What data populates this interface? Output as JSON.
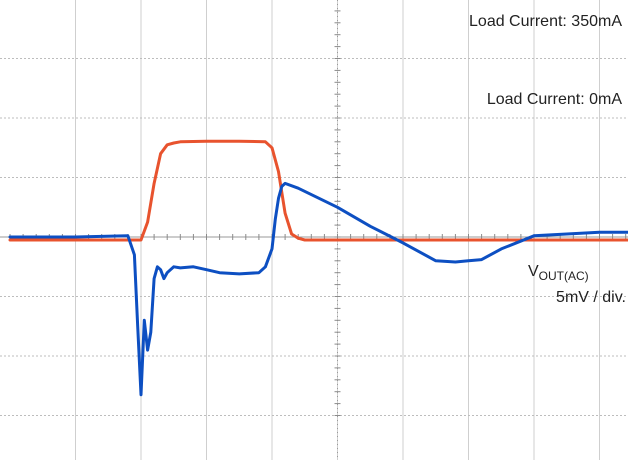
{
  "chart_data": {
    "type": "line",
    "title": "",
    "xlabel": "",
    "ylabel": "",
    "grid": true,
    "x_divisions": 10,
    "y_divisions": 8,
    "annotations": {
      "load_high": "Load Current: 350mA",
      "load_low": "Load Current: 0mA",
      "vout_main": "V",
      "vout_sub": "OUT(AC)",
      "vout_scale": "5mV / div."
    },
    "series": [
      {
        "color": "#e8532e",
        "x": [
          0,
          2.0,
          2.1,
          2.2,
          2.3,
          2.4,
          2.5,
          2.6,
          3.0,
          3.5,
          3.9,
          4.0,
          4.1,
          4.2,
          4.3,
          4.4,
          4.5,
          5.0,
          6.0,
          7.0,
          8.0,
          9.0,
          10.0
        ],
        "y": [
          -0.05,
          -0.05,
          0.25,
          0.9,
          1.4,
          1.55,
          1.58,
          1.6,
          1.61,
          1.61,
          1.6,
          1.5,
          1.1,
          0.4,
          0.05,
          -0.02,
          -0.05,
          -0.05,
          -0.05,
          -0.05,
          -0.05,
          -0.05,
          -0.05
        ]
      },
      {
        "color": "#0d4fc2",
        "x": [
          0,
          1.0,
          1.8,
          1.9,
          1.95,
          2.0,
          2.05,
          2.1,
          2.15,
          2.2,
          2.25,
          2.3,
          2.35,
          2.4,
          2.45,
          2.5,
          2.6,
          2.8,
          3.0,
          3.2,
          3.5,
          3.8,
          3.9,
          4.0,
          4.05,
          4.1,
          4.15,
          4.2,
          4.4,
          5.0,
          5.5,
          6.0,
          6.5,
          6.8,
          7.0,
          7.2,
          7.5,
          8.0,
          8.5,
          9.0,
          9.5,
          10.0
        ],
        "y": [
          0.0,
          0.0,
          0.02,
          -0.3,
          -1.5,
          -2.65,
          -1.4,
          -1.9,
          -1.6,
          -0.7,
          -0.5,
          -0.55,
          -0.7,
          -0.6,
          -0.55,
          -0.5,
          -0.52,
          -0.5,
          -0.55,
          -0.6,
          -0.62,
          -0.6,
          -0.5,
          -0.2,
          0.3,
          0.65,
          0.85,
          0.9,
          0.82,
          0.5,
          0.18,
          -0.1,
          -0.4,
          -0.42,
          -0.4,
          -0.38,
          -0.2,
          0.02,
          0.05,
          0.08,
          0.08,
          0.1
        ]
      }
    ]
  }
}
